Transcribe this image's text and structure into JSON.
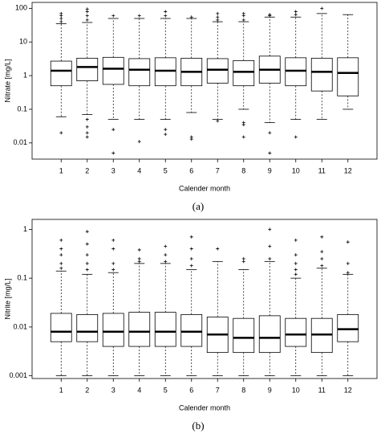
{
  "chart_data": [
    {
      "type": "box",
      "log_y": true,
      "ylabel": "Nitrate [mg/L]",
      "xlabel": "Calender month",
      "caption": "(a)",
      "categories": [
        "1",
        "2",
        "3",
        "4",
        "5",
        "6",
        "7",
        "8",
        "9",
        "10",
        "11",
        "12"
      ],
      "ylim": [
        0.0033,
        150
      ],
      "yticks": [
        100,
        10,
        1,
        0.1,
        0.01
      ],
      "boxes": [
        {
          "low": 0.06,
          "q1": 0.5,
          "median": 1.4,
          "q3": 2.7,
          "high": 35,
          "outliers": [
            0.02,
            40,
            50,
            60,
            70
          ]
        },
        {
          "low": 0.07,
          "q1": 0.7,
          "median": 1.8,
          "q3": 3.3,
          "high": 38,
          "outliers": [
            0.015,
            0.02,
            0.03,
            0.05,
            45,
            60,
            80,
            95
          ]
        },
        {
          "low": 0.05,
          "q1": 0.55,
          "median": 1.6,
          "q3": 3.5,
          "high": 50,
          "outliers": [
            0.005,
            0.025,
            60
          ]
        },
        {
          "low": 0.05,
          "q1": 0.5,
          "median": 1.5,
          "q3": 3.2,
          "high": 50,
          "outliers": [
            0.011,
            60
          ]
        },
        {
          "low": 0.05,
          "q1": 0.5,
          "median": 1.4,
          "q3": 3.4,
          "high": 50,
          "outliers": [
            0.018,
            0.025,
            60,
            80
          ]
        },
        {
          "low": 0.08,
          "q1": 0.5,
          "median": 1.3,
          "q3": 3.3,
          "high": 50,
          "outliers": [
            0.013,
            0.015,
            55
          ]
        },
        {
          "low": 0.05,
          "q1": 0.6,
          "median": 1.5,
          "q3": 3.2,
          "high": 40,
          "outliers": [
            0.045,
            45,
            55,
            70
          ]
        },
        {
          "low": 0.1,
          "q1": 0.5,
          "median": 1.3,
          "q3": 2.8,
          "high": 40,
          "outliers": [
            0.015,
            0.035,
            0.04,
            45,
            60,
            70
          ]
        },
        {
          "low": 0.04,
          "q1": 0.6,
          "median": 1.5,
          "q3": 3.8,
          "high": 55,
          "outliers": [
            0.005,
            0.02,
            60,
            65
          ]
        },
        {
          "low": 0.05,
          "q1": 0.5,
          "median": 1.4,
          "q3": 3.4,
          "high": 55,
          "outliers": [
            0.015,
            65,
            80
          ]
        },
        {
          "low": 0.05,
          "q1": 0.35,
          "median": 1.3,
          "q3": 3.3,
          "high": 70,
          "outliers": [
            100
          ]
        },
        {
          "low": 0.1,
          "q1": 0.25,
          "median": 1.2,
          "q3": 3.4,
          "high": 65,
          "outliers": []
        }
      ]
    },
    {
      "type": "box",
      "log_y": true,
      "ylabel": "Nitrite [mg/L]",
      "xlabel": "Calender month",
      "caption": "(b)",
      "categories": [
        "1",
        "2",
        "3",
        "4",
        "5",
        "6",
        "7",
        "8",
        "9",
        "10",
        "11",
        "12"
      ],
      "ylim": [
        0.00088,
        1.6
      ],
      "yticks": [
        1,
        0.1,
        0.01,
        0.001
      ],
      "boxes": [
        {
          "low": 0.001,
          "q1": 0.005,
          "median": 0.008,
          "q3": 0.019,
          "high": 0.14,
          "outliers": [
            0.16,
            0.2,
            0.3,
            0.4,
            0.6
          ]
        },
        {
          "low": 0.001,
          "q1": 0.005,
          "median": 0.008,
          "q3": 0.018,
          "high": 0.12,
          "outliers": [
            0.15,
            0.2,
            0.3,
            0.5,
            0.9
          ]
        },
        {
          "low": 0.001,
          "q1": 0.004,
          "median": 0.008,
          "q3": 0.019,
          "high": 0.13,
          "outliers": [
            0.15,
            0.2,
            0.4,
            0.6
          ]
        },
        {
          "low": 0.001,
          "q1": 0.004,
          "median": 0.008,
          "q3": 0.02,
          "high": 0.2,
          "outliers": [
            0.22,
            0.25,
            0.38
          ]
        },
        {
          "low": 0.001,
          "q1": 0.004,
          "median": 0.008,
          "q3": 0.02,
          "high": 0.2,
          "outliers": [
            0.22,
            0.3,
            0.45
          ]
        },
        {
          "low": 0.001,
          "q1": 0.004,
          "median": 0.008,
          "q3": 0.018,
          "high": 0.15,
          "outliers": [
            0.18,
            0.25,
            0.4,
            0.7
          ]
        },
        {
          "low": 0.001,
          "q1": 0.003,
          "median": 0.007,
          "q3": 0.016,
          "high": 0.22,
          "outliers": [
            0.4
          ]
        },
        {
          "low": 0.001,
          "q1": 0.003,
          "median": 0.006,
          "q3": 0.015,
          "high": 0.15,
          "outliers": [
            0.22,
            0.25
          ]
        },
        {
          "low": 0.001,
          "q1": 0.003,
          "median": 0.006,
          "q3": 0.017,
          "high": 0.22,
          "outliers": [
            0.25,
            0.45,
            1
          ]
        },
        {
          "low": 0.001,
          "q1": 0.004,
          "median": 0.007,
          "q3": 0.015,
          "high": 0.1,
          "outliers": [
            0.12,
            0.15,
            0.2,
            0.3,
            0.6
          ]
        },
        {
          "low": 0.001,
          "q1": 0.003,
          "median": 0.007,
          "q3": 0.015,
          "high": 0.16,
          "outliers": [
            0.18,
            0.25,
            0.35,
            0.7
          ]
        },
        {
          "low": 0.001,
          "q1": 0.005,
          "median": 0.009,
          "q3": 0.018,
          "high": 0.12,
          "outliers": [
            0.13,
            0.2,
            0.55
          ]
        }
      ]
    }
  ]
}
